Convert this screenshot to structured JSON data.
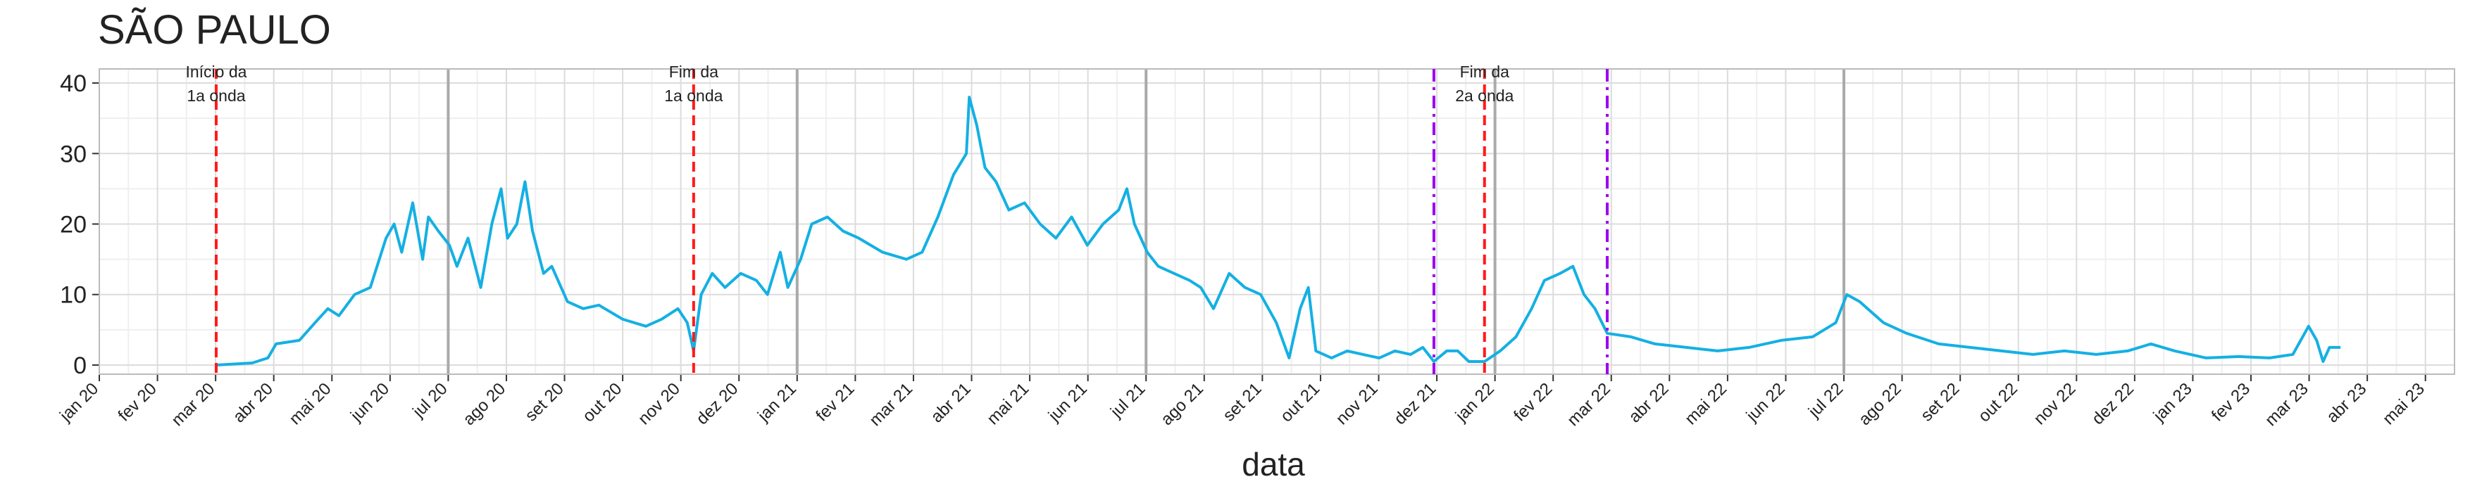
{
  "chart_data": {
    "type": "line",
    "title": "SÃO PAULO",
    "x_label": "data",
    "xlim": [
      0,
      40.5
    ],
    "ylim": [
      -1.3,
      42
    ],
    "yticks": [
      0,
      10,
      20,
      30,
      40
    ],
    "xticks": [
      {
        "value": 0,
        "label": "jan 20"
      },
      {
        "value": 1,
        "label": "fev 20"
      },
      {
        "value": 2,
        "label": "mar 20"
      },
      {
        "value": 3,
        "label": "abr 20"
      },
      {
        "value": 4,
        "label": "mai 20"
      },
      {
        "value": 5,
        "label": "jun 20"
      },
      {
        "value": 6,
        "label": "jul 20"
      },
      {
        "value": 7,
        "label": "ago 20"
      },
      {
        "value": 8,
        "label": "set 20"
      },
      {
        "value": 9,
        "label": "out 20"
      },
      {
        "value": 10,
        "label": "nov 20"
      },
      {
        "value": 11,
        "label": "dez 20"
      },
      {
        "value": 12,
        "label": "jan 21"
      },
      {
        "value": 13,
        "label": "fev 21"
      },
      {
        "value": 14,
        "label": "mar 21"
      },
      {
        "value": 15,
        "label": "abr 21"
      },
      {
        "value": 16,
        "label": "mai 21"
      },
      {
        "value": 17,
        "label": "jun 21"
      },
      {
        "value": 18,
        "label": "jul 21"
      },
      {
        "value": 19,
        "label": "ago 21"
      },
      {
        "value": 20,
        "label": "set 21"
      },
      {
        "value": 21,
        "label": "out 21"
      },
      {
        "value": 22,
        "label": "nov 21"
      },
      {
        "value": 23,
        "label": "dez 21"
      },
      {
        "value": 24,
        "label": "jan 22"
      },
      {
        "value": 25,
        "label": "fev 22"
      },
      {
        "value": 26,
        "label": "mar 22"
      },
      {
        "value": 27,
        "label": "abr 22"
      },
      {
        "value": 28,
        "label": "mai 22"
      },
      {
        "value": 29,
        "label": "jun 22"
      },
      {
        "value": 30,
        "label": "jul 22"
      },
      {
        "value": 31,
        "label": "ago 22"
      },
      {
        "value": 32,
        "label": "set 22"
      },
      {
        "value": 33,
        "label": "out 22"
      },
      {
        "value": 34,
        "label": "nov 22"
      },
      {
        "value": 35,
        "label": "dez 22"
      },
      {
        "value": 36,
        "label": "jan 23"
      },
      {
        "value": 37,
        "label": "fev 23"
      },
      {
        "value": 38,
        "label": "mar 23"
      },
      {
        "value": 39,
        "label": "abr 23"
      },
      {
        "value": 40,
        "label": "mai 23"
      }
    ],
    "grid": true,
    "major_xlines": [
      6,
      12,
      18,
      24,
      30
    ],
    "vlines": [
      {
        "x": 2.01,
        "color": "#ff1a1a",
        "style": "dashed",
        "label": [
          "Início da",
          "1a onda"
        ]
      },
      {
        "x": 10.22,
        "color": "#ff1a1a",
        "style": "dashed",
        "label": [
          "Fim da",
          "1a onda"
        ]
      },
      {
        "x": 22.95,
        "color": "#9b00ee",
        "style": "dashdot"
      },
      {
        "x": 23.82,
        "color": "#ff1a1a",
        "style": "dashed",
        "label": [
          "Fim da",
          "2a onda"
        ]
      },
      {
        "x": 25.93,
        "color": "#9b00ee",
        "style": "dashdot"
      }
    ],
    "series": [
      {
        "color": "#14b0e3",
        "x": [
          2.01,
          2.63,
          2.9,
          3.04,
          3.44,
          3.71,
          3.93,
          4.12,
          4.39,
          4.66,
          4.93,
          5.07,
          5.2,
          5.39,
          5.56,
          5.66,
          5.83,
          6.02,
          6.15,
          6.34,
          6.56,
          6.75,
          6.91,
          7.02,
          7.18,
          7.32,
          7.45,
          7.64,
          7.78,
          8.05,
          8.32,
          8.59,
          9.0,
          9.4,
          9.67,
          9.95,
          10.11,
          10.22,
          10.35,
          10.54,
          10.76,
          11.03,
          11.3,
          11.49,
          11.71,
          11.84,
          12.06,
          12.25,
          12.52,
          12.79,
          13.06,
          13.47,
          13.88,
          14.15,
          14.42,
          14.69,
          14.91,
          14.96,
          15.09,
          15.23,
          15.42,
          15.64,
          15.91,
          16.18,
          16.45,
          16.72,
          16.99,
          17.26,
          17.53,
          17.67,
          17.8,
          18.02,
          18.21,
          18.48,
          18.75,
          18.94,
          19.16,
          19.43,
          19.7,
          19.97,
          20.24,
          20.46,
          20.65,
          20.79,
          20.92,
          21.19,
          21.46,
          21.73,
          22.01,
          22.28,
          22.55,
          22.76,
          22.95,
          23.17,
          23.36,
          23.55,
          23.82,
          24.09,
          24.36,
          24.63,
          24.85,
          25.12,
          25.34,
          25.53,
          25.72,
          25.93,
          26.34,
          26.75,
          27.29,
          27.83,
          28.37,
          28.92,
          29.46,
          29.86,
          30.05,
          30.27,
          30.68,
          31.08,
          31.63,
          32.17,
          32.71,
          33.25,
          33.79,
          34.34,
          34.88,
          35.28,
          35.69,
          36.23,
          36.78,
          37.32,
          37.72,
          37.99,
          38.13,
          38.24,
          38.35,
          38.54
        ],
        "values": [
          0,
          0.3,
          1,
          3,
          3.5,
          6,
          8,
          7,
          10,
          11,
          18,
          20,
          16,
          23,
          15,
          21,
          19,
          17,
          14,
          18,
          11,
          20,
          25,
          18,
          20,
          26,
          19,
          13,
          14,
          9,
          8,
          8.5,
          6.5,
          5.5,
          6.5,
          8,
          6,
          2,
          10,
          13,
          11,
          13,
          12,
          10,
          16,
          11,
          15,
          20,
          21,
          19,
          18,
          16,
          15,
          16,
          21,
          27,
          30,
          38,
          34,
          28,
          26,
          22,
          23,
          20,
          18,
          21,
          17,
          20,
          22,
          25,
          20,
          16,
          14,
          13,
          12,
          11,
          8,
          13,
          11,
          10,
          6,
          1,
          8,
          11,
          2,
          1,
          2,
          1.5,
          1,
          2,
          1.5,
          2.5,
          0.5,
          2,
          2,
          0.5,
          0.5,
          2,
          4,
          8,
          12,
          13,
          14,
          10,
          8,
          4.5,
          4,
          3,
          2.5,
          2,
          2.5,
          3.5,
          4,
          6,
          10,
          9,
          6,
          4.5,
          3,
          2.5,
          2,
          1.5,
          2,
          1.5,
          2,
          3,
          2,
          1,
          1.2,
          1,
          1.5,
          5.5,
          3.5,
          0.5,
          2.5,
          2.5
        ]
      }
    ]
  }
}
